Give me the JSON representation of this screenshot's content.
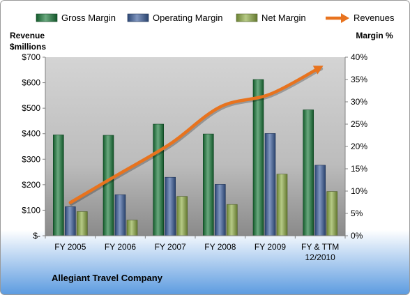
{
  "chart_data": {
    "type": "bar",
    "company": "Allegiant Travel Company",
    "categories": [
      [
        "FY 2005"
      ],
      [
        "FY 2006"
      ],
      [
        "FY 2007"
      ],
      [
        "FY 2008"
      ],
      [
        "FY 2009"
      ],
      [
        "FY & TTM",
        "12/2010"
      ]
    ],
    "left_axis": {
      "label_lines": [
        "Revenue",
        "$millions"
      ],
      "range": [
        0,
        700
      ],
      "ticks": [
        "$-",
        "$100",
        "$200",
        "$300",
        "$400",
        "$500",
        "$600",
        "$700"
      ]
    },
    "right_axis": {
      "label": "Margin  %",
      "range": [
        0,
        40
      ],
      "ticks": [
        "0%",
        "5%",
        "10%",
        "15%",
        "20%",
        "25%",
        "30%",
        "35%",
        "40%"
      ]
    },
    "series": [
      {
        "name": "Gross Margin",
        "kind": "bar",
        "axis": "right",
        "color": "#1a7a3a",
        "values": [
          22.6,
          22.5,
          25.0,
          22.8,
          35.0,
          28.2
        ]
      },
      {
        "name": "Operating Margin",
        "kind": "bar",
        "axis": "right",
        "color": "#3b5e9c",
        "values": [
          6.5,
          9.2,
          13.1,
          11.5,
          22.9,
          15.8
        ]
      },
      {
        "name": "Net Margin",
        "kind": "bar",
        "axis": "right",
        "color": "#8fad45",
        "values": [
          5.4,
          3.5,
          8.8,
          7.0,
          13.8,
          9.9
        ]
      },
      {
        "name": "Revenues",
        "kind": "line",
        "axis": "left",
        "color": "#e8731e",
        "values": [
          130,
          245,
          360,
          505,
          555,
          660
        ]
      }
    ],
    "legend": {
      "position": "top"
    },
    "grid": false
  }
}
